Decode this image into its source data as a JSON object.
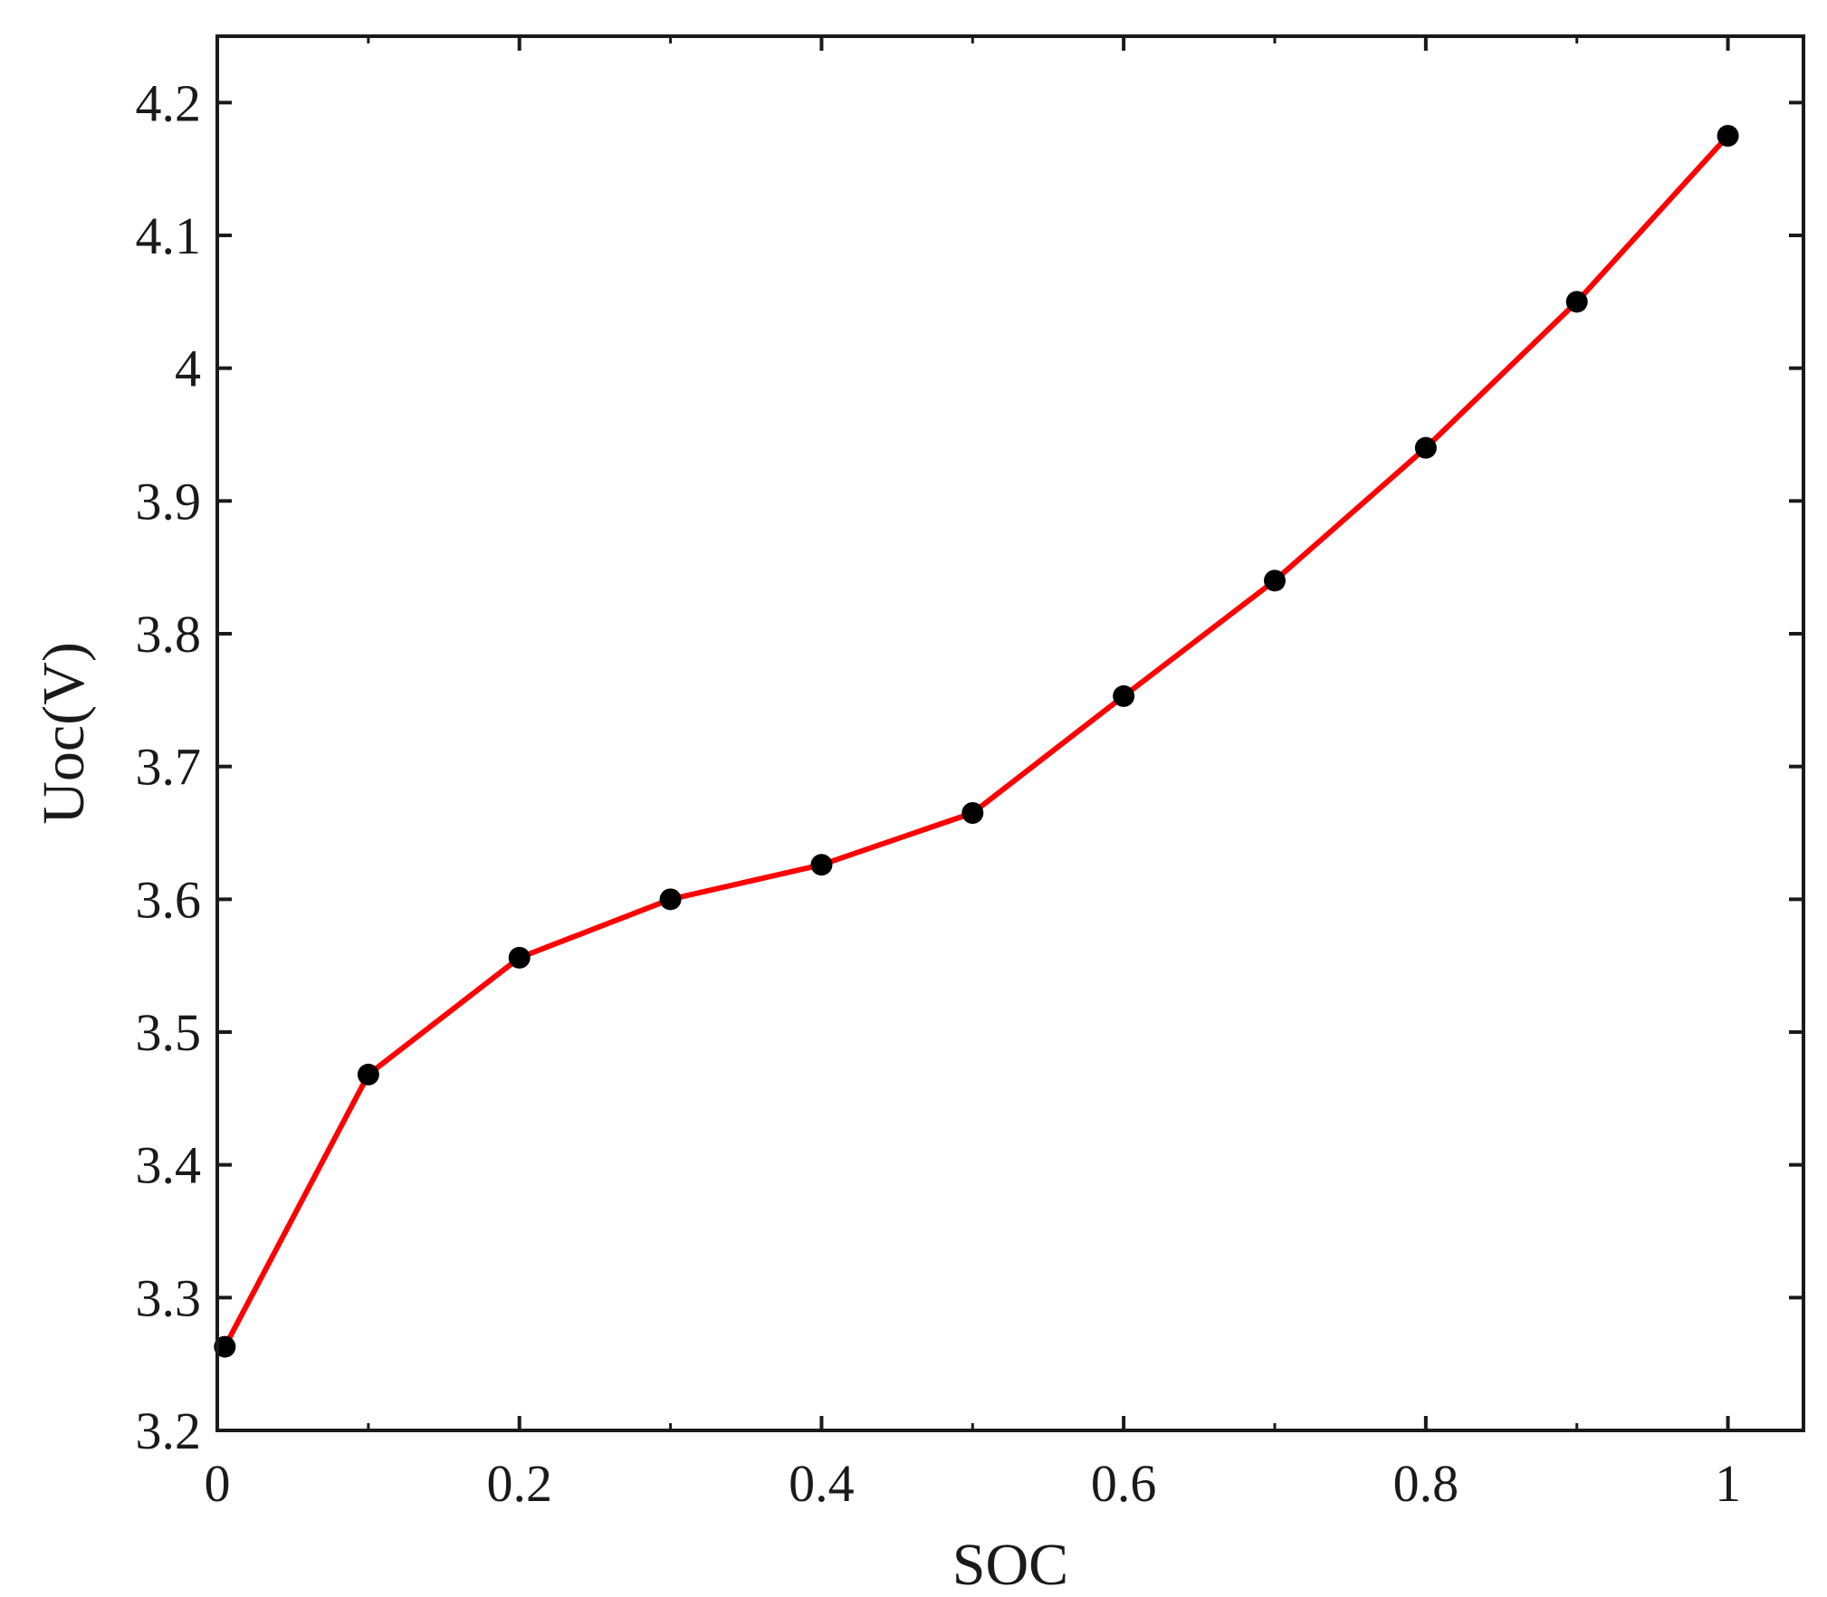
{
  "chart_data": {
    "type": "line",
    "title": "",
    "xlabel": "SOC",
    "ylabel": "Uoc(V)",
    "xlim": [
      0,
      1.05
    ],
    "ylim": [
      3.2,
      4.25
    ],
    "xticks": [
      0,
      0.2,
      0.4,
      0.6,
      0.8,
      1
    ],
    "xtick_labels": [
      "0",
      "0.2",
      "0.4",
      "0.6",
      "0.8",
      "1"
    ],
    "minor_xticks": [
      0.1,
      0.3,
      0.5,
      0.7,
      0.9
    ],
    "yticks": [
      3.2,
      3.3,
      3.4,
      3.5,
      3.6,
      3.7,
      3.8,
      3.9,
      4.0,
      4.1,
      4.2
    ],
    "ytick_labels": [
      "3.2",
      "3.3",
      "3.4",
      "3.5",
      "3.6",
      "3.7",
      "3.8",
      "3.9",
      "4",
      "4.1",
      "4.2"
    ],
    "grid": false,
    "line_color": "#ff0000",
    "marker_color": "#000000",
    "series": [
      {
        "x": [
          0.005,
          0.1,
          0.2,
          0.3,
          0.4,
          0.5,
          0.6,
          0.7,
          0.8,
          0.9,
          1.0
        ],
        "y": [
          3.263,
          3.468,
          3.556,
          3.6,
          3.626,
          3.665,
          3.753,
          3.84,
          3.94,
          4.05,
          4.175
        ]
      }
    ]
  }
}
